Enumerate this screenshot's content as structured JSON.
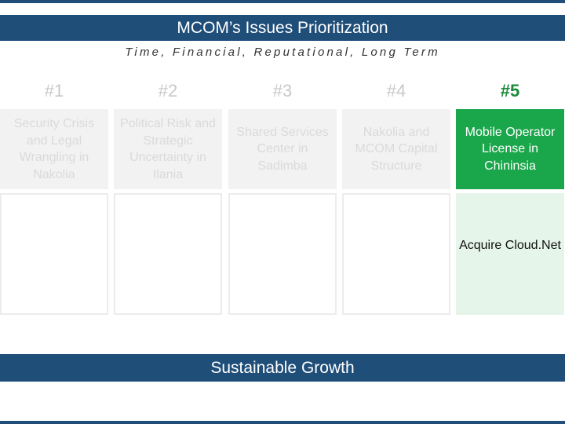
{
  "header": {
    "title": "MCOM’s Issues Prioritization",
    "subtitle": "Time, Financial, Reputational, Long Term"
  },
  "priorities": [
    {
      "rank": "#1",
      "issue": "Security Crisis and Legal Wrangling in Nakolia",
      "detail": ""
    },
    {
      "rank": "#2",
      "issue": "Political Risk and Strategic Uncertainty in Ilania",
      "detail": ""
    },
    {
      "rank": "#3",
      "issue": "Shared Services Center in Sadimba",
      "detail": ""
    },
    {
      "rank": "#4",
      "issue": "Nakolia and MCOM Capital Structure",
      "detail": ""
    },
    {
      "rank": "#5",
      "issue": "Mobile Operator License in Chininsia",
      "detail": "Acquire Cloud.Net"
    }
  ],
  "footer": {
    "label": "Sustainable Growth"
  },
  "colors": {
    "brand_blue": "#1f4e79",
    "highlight_green": "#1aa64a",
    "rank_green": "#1a8a3a",
    "detail_green_bg": "#e6f5ea",
    "muted_gray": "#c8c8c8"
  }
}
